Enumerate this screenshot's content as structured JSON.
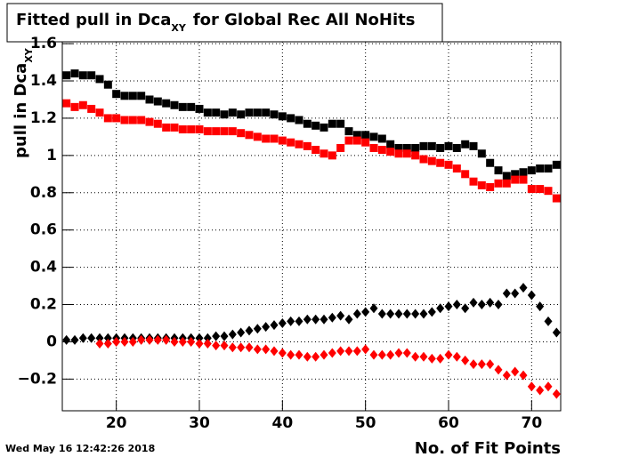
{
  "chart_data": {
    "type": "scatter",
    "title": {
      "main": "Fitted pull in Dca",
      "subscript": "XY",
      "rest": "for Global Rec All NoHits"
    },
    "ylabel": {
      "main": "pull in Dca",
      "subscript": "XY"
    },
    "xlabel": "No. of Fit Points",
    "timestamp": "Wed May 16 12:42:26 2018",
    "xlim": [
      13.5,
      73.5
    ],
    "ylim": [
      -0.37,
      1.61
    ],
    "xticks": [
      20,
      30,
      40,
      50,
      60,
      70
    ],
    "yticks": [
      {
        "value": -0.2,
        "label": "−0.2"
      },
      0,
      0.2,
      0.4,
      0.6,
      0.8,
      1,
      1.2,
      1.4,
      1.6
    ],
    "grid": true,
    "series": [
      {
        "color": "#000000",
        "marker": "square",
        "x": [
          14,
          15,
          16,
          17,
          18,
          19,
          20,
          21,
          22,
          23,
          24,
          25,
          26,
          27,
          28,
          29,
          30,
          31,
          32,
          33,
          34,
          35,
          36,
          37,
          38,
          39,
          40,
          41,
          42,
          43,
          44,
          45,
          46,
          47,
          48,
          49,
          50,
          51,
          52,
          53,
          54,
          55,
          56,
          57,
          58,
          59,
          60,
          61,
          62,
          63,
          64,
          65,
          66,
          67,
          68,
          69,
          70,
          71,
          72,
          73
        ],
        "values": [
          1.43,
          1.44,
          1.43,
          1.43,
          1.41,
          1.38,
          1.33,
          1.32,
          1.32,
          1.32,
          1.3,
          1.29,
          1.28,
          1.27,
          1.26,
          1.26,
          1.25,
          1.23,
          1.23,
          1.22,
          1.23,
          1.22,
          1.23,
          1.23,
          1.23,
          1.22,
          1.21,
          1.2,
          1.19,
          1.17,
          1.16,
          1.15,
          1.17,
          1.17,
          1.13,
          1.11,
          1.11,
          1.1,
          1.09,
          1.06,
          1.04,
          1.04,
          1.04,
          1.05,
          1.05,
          1.04,
          1.05,
          1.04,
          1.06,
          1.05,
          1.01,
          0.96,
          0.92,
          0.89,
          0.9,
          0.91,
          0.92,
          0.93,
          0.93,
          0.95
        ]
      },
      {
        "color": "#ff0000",
        "marker": "square",
        "x": [
          14,
          15,
          16,
          17,
          18,
          19,
          20,
          21,
          22,
          23,
          24,
          25,
          26,
          27,
          28,
          29,
          30,
          31,
          32,
          33,
          34,
          35,
          36,
          37,
          38,
          39,
          40,
          41,
          42,
          43,
          44,
          45,
          46,
          47,
          48,
          49,
          50,
          51,
          52,
          53,
          54,
          55,
          56,
          57,
          58,
          59,
          60,
          61,
          62,
          63,
          64,
          65,
          66,
          67,
          68,
          69,
          70,
          71,
          72,
          73
        ],
        "values": [
          1.28,
          1.26,
          1.27,
          1.25,
          1.23,
          1.2,
          1.2,
          1.19,
          1.19,
          1.19,
          1.18,
          1.17,
          1.15,
          1.15,
          1.14,
          1.14,
          1.14,
          1.13,
          1.13,
          1.13,
          1.13,
          1.12,
          1.11,
          1.1,
          1.09,
          1.09,
          1.08,
          1.07,
          1.06,
          1.05,
          1.03,
          1.01,
          1.0,
          1.04,
          1.08,
          1.08,
          1.07,
          1.04,
          1.03,
          1.02,
          1.01,
          1.01,
          1.0,
          0.98,
          0.97,
          0.96,
          0.95,
          0.93,
          0.9,
          0.86,
          0.84,
          0.83,
          0.85,
          0.85,
          0.87,
          0.87,
          0.82,
          0.82,
          0.81,
          0.77
        ]
      },
      {
        "color": "#000000",
        "marker": "diamond",
        "x": [
          14,
          15,
          16,
          17,
          18,
          19,
          20,
          21,
          22,
          23,
          24,
          25,
          26,
          27,
          28,
          29,
          30,
          31,
          32,
          33,
          34,
          35,
          36,
          37,
          38,
          39,
          40,
          41,
          42,
          43,
          44,
          45,
          46,
          47,
          48,
          49,
          50,
          51,
          52,
          53,
          54,
          55,
          56,
          57,
          58,
          59,
          60,
          61,
          62,
          63,
          64,
          65,
          66,
          67,
          68,
          69,
          70,
          71,
          72,
          73
        ],
        "values": [
          0.01,
          0.01,
          0.02,
          0.02,
          0.02,
          0.02,
          0.02,
          0.02,
          0.02,
          0.02,
          0.02,
          0.02,
          0.02,
          0.02,
          0.02,
          0.02,
          0.02,
          0.02,
          0.03,
          0.03,
          0.04,
          0.05,
          0.06,
          0.07,
          0.08,
          0.09,
          0.1,
          0.11,
          0.11,
          0.12,
          0.12,
          0.12,
          0.13,
          0.14,
          0.12,
          0.15,
          0.16,
          0.18,
          0.15,
          0.15,
          0.15,
          0.15,
          0.15,
          0.15,
          0.16,
          0.18,
          0.19,
          0.2,
          0.18,
          0.21,
          0.2,
          0.21,
          0.2,
          0.26,
          0.26,
          0.29,
          0.25,
          0.19,
          0.11,
          0.05
        ]
      },
      {
        "color": "#ff0000",
        "marker": "diamond",
        "x": [
          18,
          19,
          20,
          21,
          22,
          23,
          24,
          25,
          26,
          27,
          28,
          29,
          30,
          31,
          32,
          33,
          34,
          35,
          36,
          37,
          38,
          39,
          40,
          41,
          42,
          43,
          44,
          45,
          46,
          47,
          48,
          49,
          50,
          51,
          52,
          53,
          54,
          55,
          56,
          57,
          58,
          59,
          60,
          61,
          62,
          63,
          64,
          65,
          66,
          67,
          68,
          69,
          70,
          71,
          72,
          73
        ],
        "values": [
          -0.01,
          -0.01,
          0,
          0,
          0,
          0.01,
          0.01,
          0.01,
          0.01,
          0,
          0,
          0,
          -0.01,
          -0.01,
          -0.02,
          -0.02,
          -0.03,
          -0.03,
          -0.03,
          -0.04,
          -0.04,
          -0.05,
          -0.06,
          -0.07,
          -0.07,
          -0.08,
          -0.08,
          -0.07,
          -0.06,
          -0.05,
          -0.05,
          -0.05,
          -0.04,
          -0.07,
          -0.07,
          -0.07,
          -0.06,
          -0.06,
          -0.08,
          -0.08,
          -0.09,
          -0.09,
          -0.07,
          -0.08,
          -0.1,
          -0.12,
          -0.12,
          -0.12,
          -0.15,
          -0.18,
          -0.16,
          -0.18,
          -0.24,
          -0.26,
          -0.24,
          -0.28
        ]
      }
    ]
  }
}
